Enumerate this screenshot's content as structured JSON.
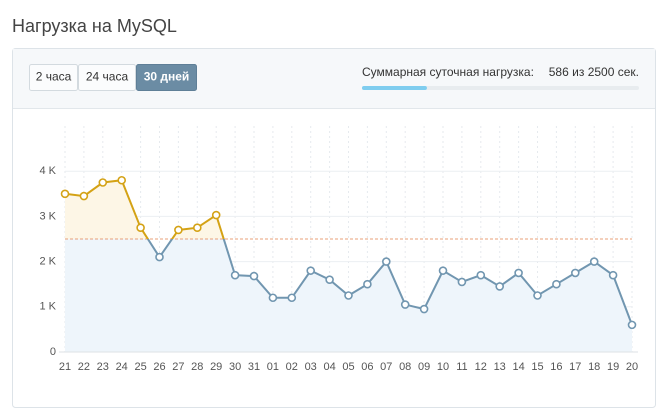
{
  "header": {
    "title": "Нагрузка на MySQL"
  },
  "tabs": [
    {
      "label": "2 часа"
    },
    {
      "label": "24 часа"
    },
    {
      "label": "30 дней",
      "active": true
    }
  ],
  "summary": {
    "label": "Суммарная суточная нагрузка:",
    "used": 586,
    "separator": "из",
    "total": 2500,
    "unit": "сек."
  },
  "chart_data": {
    "type": "line",
    "categories": [
      "21",
      "22",
      "23",
      "24",
      "25",
      "26",
      "27",
      "28",
      "29",
      "30",
      "31",
      "01",
      "02",
      "03",
      "04",
      "05",
      "06",
      "07",
      "08",
      "09",
      "10",
      "11",
      "12",
      "13",
      "14",
      "15",
      "16",
      "17",
      "18",
      "19",
      "20"
    ],
    "values": [
      3500,
      3450,
      3750,
      3800,
      2750,
      2100,
      2700,
      2750,
      3030,
      1700,
      1680,
      1200,
      1200,
      1800,
      1600,
      1250,
      1500,
      2000,
      1050,
      950,
      1800,
      1550,
      1700,
      1450,
      1750,
      1250,
      1500,
      1750,
      2000,
      1700,
      600
    ],
    "color": "#7196b0",
    "over_color": "#d4a215",
    "threshold": 2500,
    "ylim": [
      0,
      5000
    ],
    "yticks": [
      0,
      {
        "value": 1000,
        "label": "1 K"
      },
      {
        "value": 2000,
        "label": "2 K"
      },
      {
        "value": 3000,
        "label": "3 K"
      },
      {
        "value": 4000,
        "label": "4 K"
      }
    ],
    "grid": true
  }
}
